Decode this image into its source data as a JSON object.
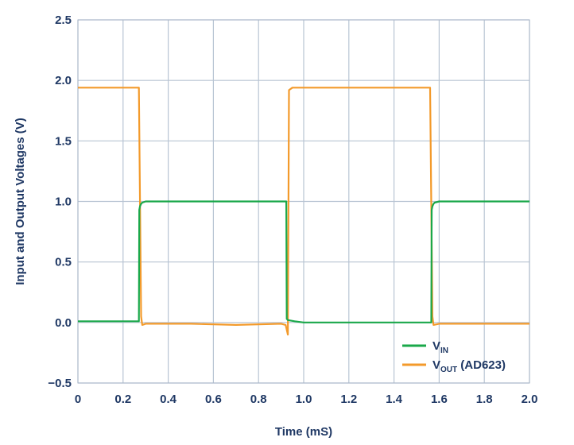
{
  "chart_data": {
    "type": "line",
    "xlabel": "Time (mS)",
    "ylabel": "Input and Output Voltages (V)",
    "xlim": [
      0,
      2.0
    ],
    "ylim": [
      -0.5,
      2.5
    ],
    "x_ticks": [
      "0",
      "0.2",
      "0.4",
      "0.6",
      "0.8",
      "1.0",
      "1.2",
      "1.4",
      "1.6",
      "1.8",
      "2.0"
    ],
    "y_ticks": [
      "2.5",
      "2.0",
      "1.5",
      "1.0",
      "0.5",
      "0.0",
      "−0.5"
    ],
    "grid": true,
    "legend_position": "bottom-right",
    "series": [
      {
        "name": "V_IN",
        "legend_main": "V",
        "legend_sub": "IN",
        "legend_suffix": "",
        "color": "#1aa84a",
        "x": [
          0,
          0.27,
          0.272,
          0.275,
          0.28,
          0.285,
          0.3,
          0.35,
          0.5,
          0.7,
          0.923,
          0.925,
          0.93,
          0.96,
          1.0,
          1.2,
          1.4,
          1.55,
          1.565,
          1.567,
          1.57,
          1.575,
          1.58,
          1.6,
          1.65,
          1.8,
          2.0
        ],
        "y": [
          0.01,
          0.01,
          0.93,
          0.96,
          0.98,
          0.99,
          1.0,
          1.0,
          1.0,
          1.0,
          1.0,
          0.03,
          0.02,
          0.01,
          0.0,
          0.0,
          0.0,
          0.0,
          0.0,
          0.93,
          0.96,
          0.98,
          0.99,
          1.0,
          1.0,
          1.0,
          1.0
        ]
      },
      {
        "name": "V_OUT (AD623)",
        "legend_main": "V",
        "legend_sub": "OUT",
        "legend_suffix": " (AD623)",
        "color": "#f39a2b",
        "x": [
          0,
          0.1,
          0.27,
          0.28,
          0.285,
          0.3,
          0.4,
          0.5,
          0.7,
          0.9,
          0.92,
          0.93,
          0.935,
          0.95,
          1.0,
          1.2,
          1.4,
          1.56,
          1.57,
          1.575,
          1.6,
          1.8,
          2.0
        ],
        "y": [
          1.94,
          1.94,
          1.94,
          0.05,
          -0.02,
          -0.01,
          -0.01,
          -0.01,
          -0.02,
          -0.01,
          -0.02,
          -0.1,
          1.92,
          1.94,
          1.94,
          1.94,
          1.94,
          1.94,
          0.05,
          -0.02,
          -0.01,
          -0.01,
          -0.01
        ]
      }
    ]
  }
}
